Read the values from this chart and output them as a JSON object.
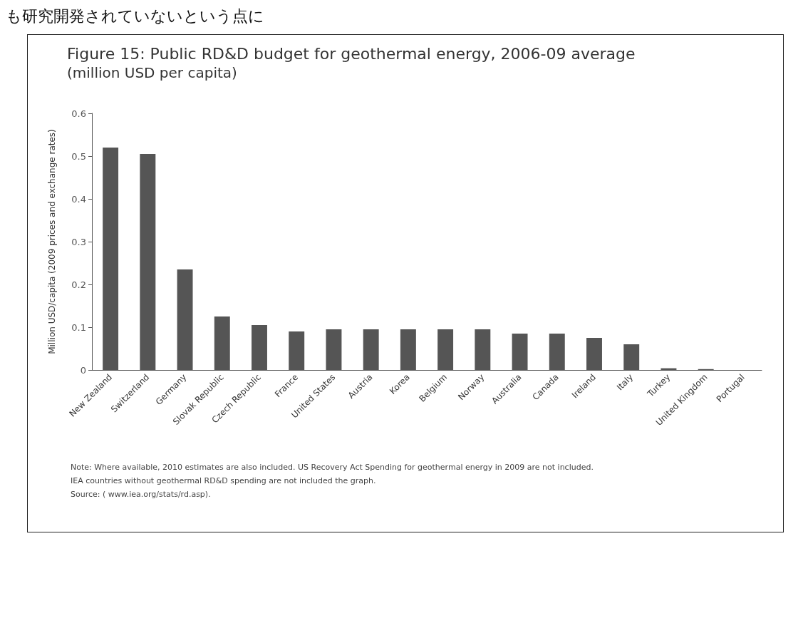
{
  "chart_data": {
    "type": "bar",
    "title": "Figure 15: Public RD&D budget for geothermal energy, 2006-09 average",
    "subtitle": "(million USD per capita)",
    "ylabel": "Million USD/capita (2009 prices and exchange rates)",
    "categories": [
      "New Zealand",
      "Switzerland",
      "Germany",
      "Slovak Republic",
      "Czech Republic",
      "France",
      "United States",
      "Austria",
      "Korea",
      "Belgium",
      "Norway",
      "Australia",
      "Canada",
      "Ireland",
      "Italy",
      "Turkey",
      "United Kingdom",
      "Portugal"
    ],
    "values": [
      0.52,
      0.505,
      0.235,
      0.125,
      0.105,
      0.09,
      0.095,
      0.095,
      0.095,
      0.095,
      0.095,
      0.085,
      0.085,
      0.075,
      0.06,
      0.004,
      0.002,
      null
    ],
    "color": "#555555",
    "ylim": [
      0,
      0.6
    ],
    "yticks": [
      0,
      0.1,
      0.2,
      0.3,
      0.4,
      0.5,
      0.6
    ],
    "grid": false,
    "annotations": [
      "も研究開発されていないという点に",
      "Note: Where available, 2010 estimates are also included. US Recovery Act Spending for geothermal energy in 2009 are not included.",
      "IEA countries without geothermal RD&D spending are not included the graph.",
      "Source: ( www.iea.org/stats/rd.asp)."
    ]
  }
}
